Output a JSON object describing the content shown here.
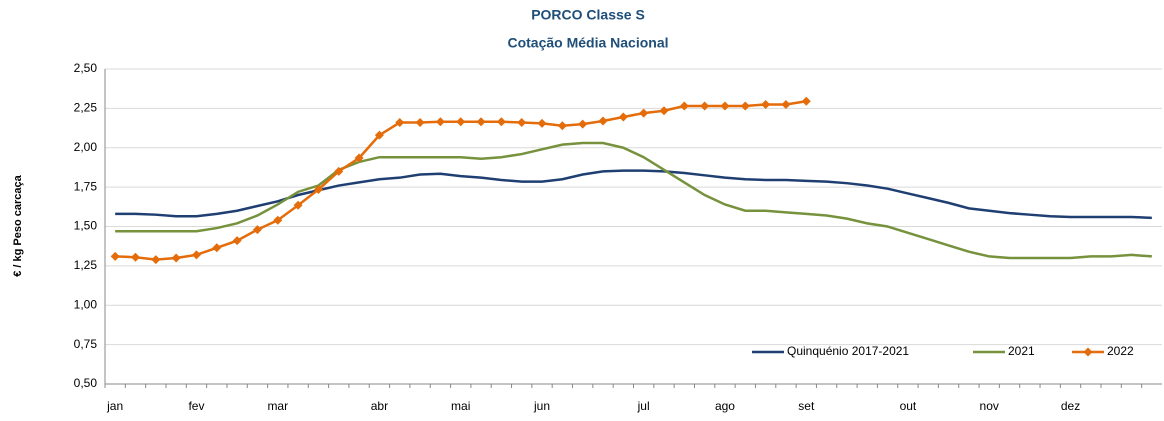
{
  "chart_data": {
    "type": "line",
    "title": "PORCO Classe S",
    "subtitle": "Cotação Média Nacional",
    "y_label": "€ / kg Peso carcaça",
    "categories": [
      "jan",
      null,
      null,
      null,
      "fev",
      null,
      null,
      null,
      "mar",
      null,
      null,
      null,
      null,
      "abr",
      null,
      null,
      null,
      "mai",
      null,
      null,
      null,
      "jun",
      null,
      null,
      null,
      null,
      "jul",
      null,
      null,
      null,
      "ago",
      null,
      null,
      null,
      "set",
      null,
      null,
      null,
      null,
      "out",
      null,
      null,
      null,
      "nov",
      null,
      null,
      null,
      "dez",
      null,
      null,
      null,
      null
    ],
    "series": [
      {
        "name": "Quinquénio 2017-2021",
        "color": "#1f3f72",
        "marker": false,
        "values": [
          1.58,
          1.58,
          1.575,
          1.565,
          1.565,
          1.58,
          1.6,
          1.63,
          1.66,
          1.7,
          1.73,
          1.76,
          1.78,
          1.8,
          1.81,
          1.83,
          1.835,
          1.82,
          1.81,
          1.795,
          1.785,
          1.785,
          1.8,
          1.83,
          1.85,
          1.855,
          1.855,
          1.85,
          1.84,
          1.825,
          1.81,
          1.8,
          1.795,
          1.795,
          1.79,
          1.785,
          1.775,
          1.76,
          1.74,
          1.71,
          1.68,
          1.65,
          1.615,
          1.6,
          1.585,
          1.575,
          1.565,
          1.56,
          1.56,
          1.56,
          1.56,
          1.555
        ]
      },
      {
        "name": "2021",
        "color": "#76923c",
        "marker": false,
        "values": [
          1.47,
          1.47,
          1.47,
          1.47,
          1.47,
          1.49,
          1.52,
          1.57,
          1.64,
          1.72,
          1.76,
          1.86,
          1.91,
          1.94,
          1.94,
          1.94,
          1.94,
          1.94,
          1.93,
          1.94,
          1.96,
          1.99,
          2.02,
          2.03,
          2.03,
          2.0,
          1.94,
          1.86,
          1.78,
          1.7,
          1.64,
          1.6,
          1.6,
          1.59,
          1.58,
          1.57,
          1.55,
          1.52,
          1.5,
          1.46,
          1.42,
          1.38,
          1.34,
          1.31,
          1.3,
          1.3,
          1.3,
          1.3,
          1.31,
          1.31,
          1.32,
          1.31
        ]
      },
      {
        "name": "2022",
        "color": "#e46c0a",
        "marker": true,
        "values": [
          1.31,
          1.305,
          1.29,
          1.3,
          1.32,
          1.365,
          1.41,
          1.48,
          1.54,
          1.635,
          1.735,
          1.85,
          1.935,
          2.08,
          2.16,
          2.16,
          2.165,
          2.165,
          2.165,
          2.165,
          2.16,
          2.155,
          2.14,
          2.15,
          2.17,
          2.195,
          2.22,
          2.235,
          2.265,
          2.265,
          2.265,
          2.265,
          2.275,
          2.275,
          2.295,
          null,
          null,
          null,
          null,
          null,
          null,
          null,
          null,
          null,
          null,
          null,
          null,
          null,
          null,
          null,
          null,
          null
        ]
      }
    ],
    "ylim": [
      0.5,
      2.5
    ],
    "yticks": [
      {
        "value": 0.5,
        "label": "0,50"
      },
      {
        "value": 0.75,
        "label": "0,75"
      },
      {
        "value": 1,
        "label": "1,00"
      },
      {
        "value": 1.25,
        "label": "1,25"
      },
      {
        "value": 1.5,
        "label": "1,50"
      },
      {
        "value": 1.75,
        "label": "1,75"
      },
      {
        "value": 2,
        "label": "2,00"
      },
      {
        "value": 2.25,
        "label": "2,25"
      },
      {
        "value": 2.5,
        "label": "2,50"
      }
    ],
    "grid": true,
    "legend": "lower-right"
  }
}
